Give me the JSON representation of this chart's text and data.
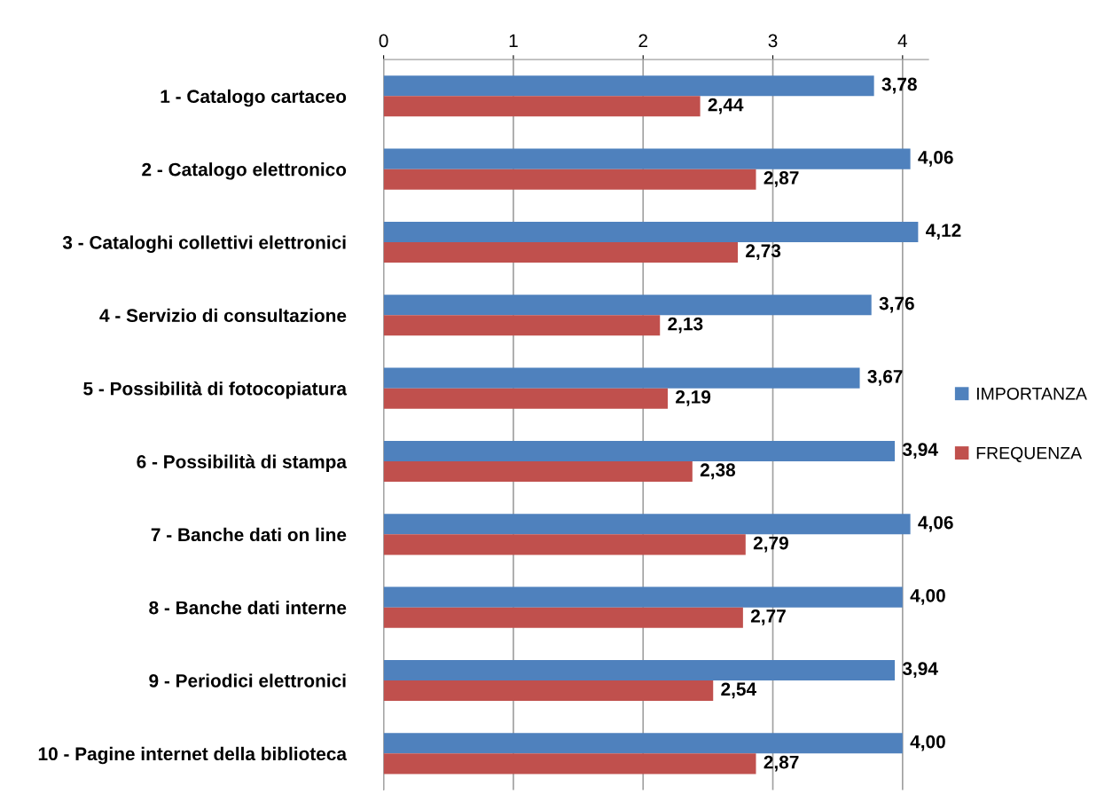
{
  "chart_data": {
    "type": "bar",
    "orientation": "horizontal",
    "categories": [
      "1 - Catalogo cartaceo",
      "2 - Catalogo elettronico",
      "3 - Cataloghi collettivi elettronici",
      "4 - Servizio di consultazione",
      "5 - Possibilità di fotocopiatura",
      "6 - Possibilità di stampa",
      "7 - Banche dati on line",
      "8 - Banche dati interne",
      "9 - Periodici elettronici",
      "10 - Pagine internet della biblioteca"
    ],
    "series": [
      {
        "name": "IMPORTANZA",
        "color": "#4f81bd",
        "values": [
          3.78,
          4.06,
          4.12,
          3.76,
          3.67,
          3.94,
          4.06,
          4.0,
          3.94,
          4.0
        ],
        "value_labels": [
          "3,78",
          "4,06",
          "4,12",
          "3,76",
          "3,67",
          "3,94",
          "4,06",
          "4,00",
          "3,94",
          "4,00"
        ]
      },
      {
        "name": "FREQUENZA",
        "color": "#c0504d",
        "values": [
          2.44,
          2.87,
          2.73,
          2.13,
          2.19,
          2.38,
          2.79,
          2.77,
          2.54,
          2.87
        ],
        "value_labels": [
          "2,44",
          "2,87",
          "2,73",
          "2,13",
          "2,19",
          "2,38",
          "2,79",
          "2,77",
          "2,54",
          "2,87"
        ]
      }
    ],
    "xlim": [
      0,
      4.2
    ],
    "xticks": [
      0,
      1,
      2,
      3,
      4
    ],
    "grid": "x",
    "legend": "right"
  }
}
